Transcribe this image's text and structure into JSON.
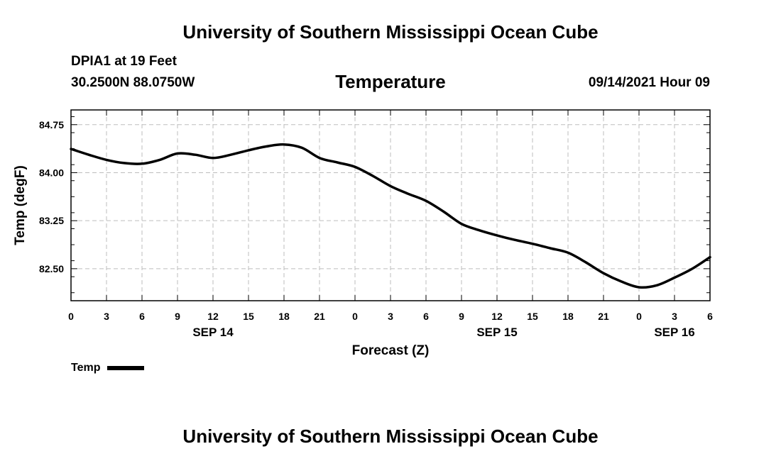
{
  "header": {
    "title": "University of Southern Mississippi Ocean Cube",
    "station": "DPIA1 at 19 Feet",
    "coords": "30.2500N  88.0750W",
    "date": "09/14/2021 Hour 09"
  },
  "footer": {
    "title": "University of Southern Mississippi Ocean Cube"
  },
  "chart_data": {
    "type": "line",
    "title": "Temperature",
    "xlabel": "Forecast (Z)",
    "ylabel": "Temp (degF)",
    "ylim": [
      82.0,
      84.98
    ],
    "xlim": [
      0,
      54
    ],
    "x_unit": "hours since 2021-09-14 00Z",
    "x_ticks": [
      0,
      3,
      6,
      9,
      12,
      15,
      18,
      21,
      24,
      27,
      30,
      33,
      36,
      39,
      42,
      45,
      48,
      51,
      54
    ],
    "x_tick_labels": [
      "0",
      "3",
      "6",
      "9",
      "12",
      "15",
      "18",
      "21",
      "0",
      "3",
      "6",
      "9",
      "12",
      "15",
      "18",
      "21",
      "0",
      "3",
      "6"
    ],
    "y_ticks": [
      82.5,
      83.25,
      84.0,
      84.75
    ],
    "y_tick_labels": [
      "82.50",
      "83.25",
      "84.00",
      "84.75"
    ],
    "day_labels": [
      {
        "x": 12,
        "label": "SEP 14"
      },
      {
        "x": 36,
        "label": "SEP 15"
      },
      {
        "x": 51,
        "label": "SEP 16"
      }
    ],
    "grid": true,
    "legend_position": "bottom-left",
    "series": [
      {
        "name": "Temp",
        "color": "#000000",
        "x": [
          0,
          1.5,
          3,
          4.5,
          6,
          7.5,
          9,
          10.5,
          12,
          13.5,
          15,
          16.5,
          18,
          19.5,
          21,
          22.5,
          24,
          25.5,
          27,
          28.5,
          30,
          31.5,
          33,
          34.5,
          36,
          37.5,
          39,
          40.5,
          42,
          43.5,
          45,
          46.5,
          48,
          49.5,
          51,
          52.5,
          54
        ],
        "values": [
          84.37,
          84.28,
          84.2,
          84.15,
          84.14,
          84.2,
          84.3,
          84.28,
          84.23,
          84.28,
          84.35,
          84.41,
          84.44,
          84.39,
          84.23,
          84.16,
          84.09,
          83.95,
          83.79,
          83.67,
          83.56,
          83.39,
          83.2,
          83.1,
          83.02,
          82.95,
          82.89,
          82.82,
          82.75,
          82.6,
          82.43,
          82.3,
          82.21,
          82.24,
          82.36,
          82.5,
          82.68
        ]
      }
    ]
  }
}
